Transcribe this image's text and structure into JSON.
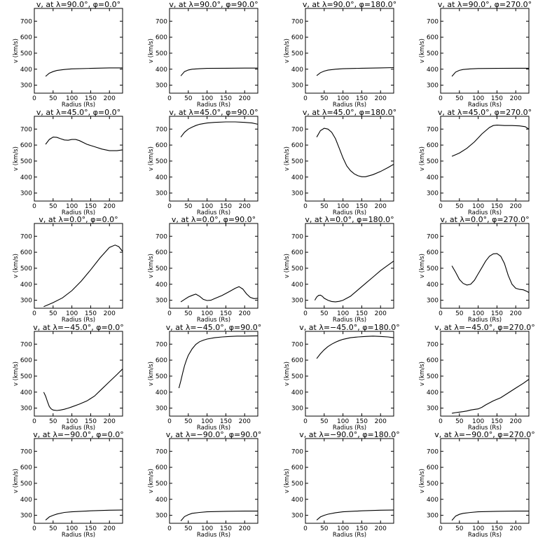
{
  "chart_data": {
    "type": "line",
    "layout": {
      "rows": 5,
      "cols": 4
    },
    "xlim": [
      0,
      235
    ],
    "ylim": [
      250,
      780
    ],
    "xticks": [
      0,
      50,
      100,
      150,
      200
    ],
    "yticks": [
      300,
      400,
      500,
      600,
      700
    ],
    "xlabel": "Radius (Rs)",
    "ylabel": "v (km/s)",
    "title_prefix": "v at",
    "panels": [
      {
        "title": "v, at λ=90.0°, φ=0.0°",
        "x": [
          30,
          40,
          50,
          60,
          80,
          100,
          150,
          200,
          235
        ],
        "y": [
          355,
          375,
          385,
          392,
          398,
          402,
          405,
          408,
          408
        ]
      },
      {
        "title": "v, at λ=90.0°, φ=90.0°",
        "x": [
          30,
          40,
          50,
          60,
          80,
          100,
          150,
          200,
          235
        ],
        "y": [
          358,
          385,
          395,
          400,
          403,
          405,
          406,
          407,
          407
        ]
      },
      {
        "title": "v, at λ=90.0°, φ=180.0°",
        "x": [
          30,
          40,
          50,
          60,
          80,
          100,
          150,
          200,
          235
        ],
        "y": [
          360,
          378,
          388,
          394,
          400,
          403,
          406,
          408,
          410
        ]
      },
      {
        "title": "v, at λ=90.0°, φ=270.0°",
        "x": [
          30,
          40,
          50,
          60,
          80,
          100,
          150,
          200,
          235
        ],
        "y": [
          355,
          382,
          393,
          398,
          402,
          404,
          405,
          406,
          406
        ]
      },
      {
        "title": "v, at λ=45.0°, φ=0.0°",
        "x": [
          30,
          40,
          50,
          60,
          70,
          80,
          90,
          100,
          110,
          120,
          140,
          160,
          180,
          200,
          220,
          235
        ],
        "y": [
          605,
          635,
          650,
          648,
          640,
          632,
          630,
          635,
          635,
          628,
          605,
          590,
          575,
          565,
          565,
          570
        ]
      },
      {
        "title": "v, at λ=45.0°, φ=90.0°",
        "x": [
          30,
          40,
          50,
          60,
          70,
          80,
          100,
          120,
          150,
          175,
          200,
          220,
          235
        ],
        "y": [
          650,
          680,
          700,
          712,
          722,
          730,
          738,
          742,
          745,
          745,
          742,
          738,
          730
        ]
      },
      {
        "title": "v, at λ=45.0°, φ=180.0°",
        "x": [
          30,
          40,
          50,
          60,
          70,
          80,
          90,
          100,
          110,
          120,
          130,
          140,
          150,
          160,
          180,
          200,
          220,
          235
        ],
        "y": [
          650,
          690,
          705,
          700,
          680,
          640,
          580,
          520,
          470,
          440,
          420,
          408,
          402,
          402,
          415,
          435,
          460,
          480
        ]
      },
      {
        "title": "v, at λ=45.0°, φ=270.0°",
        "x": [
          30,
          50,
          70,
          90,
          110,
          130,
          140,
          150,
          170,
          190,
          210,
          225,
          235
        ],
        "y": [
          530,
          550,
          580,
          620,
          670,
          710,
          722,
          725,
          722,
          722,
          720,
          715,
          700
        ]
      },
      {
        "title": "v, at λ=0.0°, φ=0.0°",
        "x": [
          25,
          50,
          75,
          100,
          125,
          150,
          175,
          200,
          215,
          225,
          235
        ],
        "y": [
          260,
          285,
          315,
          360,
          420,
          490,
          565,
          630,
          645,
          635,
          605
        ]
      },
      {
        "title": "v, at λ=0.0°, φ=90.0°",
        "x": [
          30,
          40,
          50,
          60,
          70,
          80,
          90,
          100,
          110,
          120,
          140,
          160,
          175,
          185,
          195,
          205,
          215,
          225,
          235
        ],
        "y": [
          290,
          305,
          320,
          330,
          338,
          325,
          305,
          298,
          300,
          310,
          330,
          355,
          375,
          385,
          370,
          340,
          318,
          310,
          312
        ]
      },
      {
        "title": "v, at λ=0.0°, φ=180.0°",
        "x": [
          25,
          30,
          35,
          40,
          45,
          50,
          60,
          70,
          80,
          90,
          100,
          120,
          140,
          160,
          180,
          200,
          220,
          235
        ],
        "y": [
          300,
          320,
          330,
          332,
          325,
          312,
          300,
          292,
          290,
          293,
          300,
          325,
          365,
          405,
          445,
          485,
          520,
          545
        ]
      },
      {
        "title": "v, at λ=0.0°, φ=270.0°",
        "x": [
          30,
          40,
          50,
          60,
          70,
          80,
          90,
          100,
          110,
          120,
          130,
          140,
          150,
          160,
          170,
          180,
          190,
          200,
          210,
          220,
          230,
          235
        ],
        "y": [
          515,
          475,
          430,
          405,
          395,
          400,
          425,
          465,
          505,
          545,
          575,
          590,
          592,
          575,
          530,
          455,
          400,
          375,
          368,
          365,
          355,
          348
        ]
      },
      {
        "title": "v, at λ=−45.0°, φ=0.0°",
        "x": [
          25,
          30,
          35,
          40,
          45,
          50,
          60,
          70,
          80,
          90,
          100,
          120,
          140,
          160,
          180,
          200,
          220,
          235
        ],
        "y": [
          400,
          375,
          340,
          310,
          295,
          288,
          285,
          288,
          293,
          300,
          308,
          325,
          345,
          375,
          420,
          465,
          510,
          545
        ]
      },
      {
        "title": "v, at λ=−45.0°, φ=90.0°",
        "x": [
          25,
          30,
          35,
          40,
          45,
          50,
          60,
          70,
          80,
          90,
          100,
          120,
          140,
          160,
          180,
          200,
          220,
          235
        ],
        "y": [
          425,
          470,
          520,
          565,
          600,
          630,
          670,
          698,
          715,
          725,
          732,
          740,
          745,
          748,
          750,
          750,
          751,
          752
        ]
      },
      {
        "title": "v, at λ=−45.0°, φ=180.0°",
        "x": [
          30,
          40,
          50,
          60,
          70,
          80,
          90,
          100,
          120,
          140,
          160,
          180,
          200,
          220,
          235
        ],
        "y": [
          610,
          640,
          665,
          685,
          700,
          712,
          722,
          730,
          740,
          745,
          748,
          750,
          748,
          745,
          740
        ]
      },
      {
        "title": "v, at λ=−45.0°, φ=270.0°",
        "x": [
          30,
          40,
          50,
          60,
          70,
          80,
          90,
          100,
          110,
          120,
          140,
          160,
          180,
          200,
          220,
          235
        ],
        "y": [
          268,
          272,
          275,
          278,
          282,
          288,
          292,
          295,
          305,
          320,
          345,
          365,
          395,
          425,
          455,
          480
        ]
      },
      {
        "title": "v, at λ=−90.0°, φ=0.0°",
        "x": [
          30,
          40,
          50,
          60,
          80,
          100,
          150,
          200,
          235
        ],
        "y": [
          270,
          290,
          300,
          308,
          318,
          322,
          328,
          332,
          333
        ]
      },
      {
        "title": "v, at λ=−90.0°, φ=90.0°",
        "x": [
          30,
          40,
          50,
          60,
          80,
          100,
          150,
          200,
          235
        ],
        "y": [
          265,
          292,
          304,
          312,
          318,
          322,
          325,
          326,
          326
        ]
      },
      {
        "title": "v, at λ=−90.0°, φ=180.0°",
        "x": [
          30,
          40,
          50,
          60,
          80,
          100,
          150,
          200,
          235
        ],
        "y": [
          270,
          290,
          300,
          307,
          316,
          322,
          328,
          332,
          333
        ]
      },
      {
        "title": "v, at λ=−90.0°, φ=270.0°",
        "x": [
          30,
          40,
          50,
          60,
          80,
          100,
          150,
          200,
          235
        ],
        "y": [
          268,
          295,
          306,
          312,
          318,
          322,
          325,
          326,
          326
        ]
      }
    ]
  }
}
